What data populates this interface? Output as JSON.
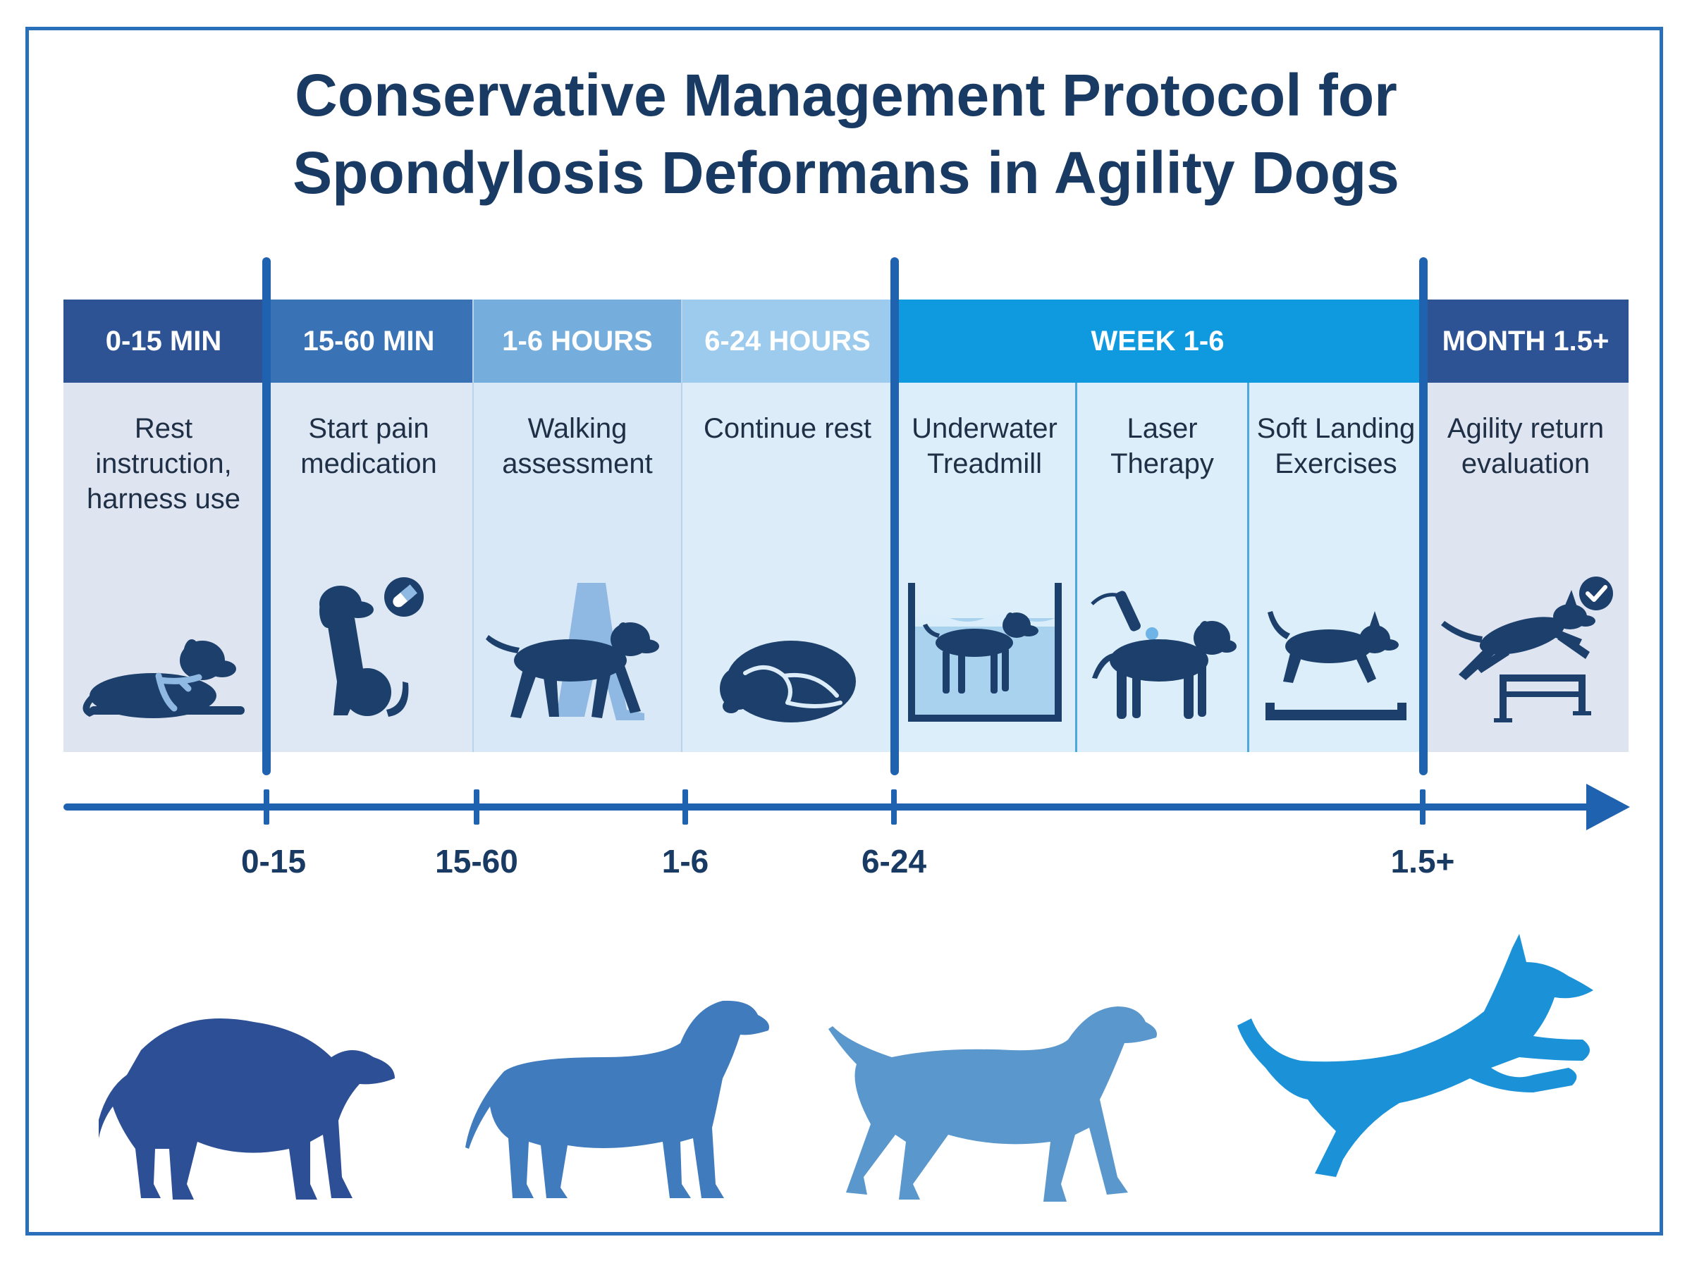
{
  "title": {
    "line1": "Conservative Management Protocol for",
    "line2": "Spondylosis Deformans in Agility Dogs"
  },
  "phases": [
    {
      "header": "0-15 MIN",
      "label": "Rest instruction, harness use",
      "icon": "dog-lying-harness-icon",
      "header_color": "#2d5394",
      "body_color": "#dfe4f1"
    },
    {
      "header": "15-60 MIN",
      "label": "Start pain medication",
      "icon": "dog-sitting-pill-icon",
      "header_color": "#3a73b5",
      "body_color": "#dde8f4"
    },
    {
      "header": "1-6 HOURS",
      "label": "Walking assessment",
      "icon": "dog-walking-with-person-icon",
      "header_color": "#75aedc",
      "body_color": "#d8e8f6"
    },
    {
      "header": "6-24 HOURS",
      "label": "Continue rest",
      "icon": "dog-curled-sleeping-icon",
      "header_color": "#9ccbed",
      "body_color": "#dcecf8"
    },
    {
      "header": "WEEK 1-6",
      "label": "",
      "icon": "",
      "header_color": "#0f9ae0",
      "body_color": "#dbeef9"
    },
    {
      "header": "MONTH 1.5+",
      "label": "Agility return evaluation",
      "icon": "dog-jumping-hurdle-check-icon",
      "header_color": "#2d5394",
      "body_color": "#dfe4f1"
    }
  ],
  "week_subphases": [
    {
      "label": "Underwater Treadmill",
      "icon": "dog-underwater-treadmill-icon"
    },
    {
      "label": "Laser Therapy",
      "icon": "dog-laser-therapy-icon"
    },
    {
      "label": "Soft Landing Exercises",
      "icon": "dog-soft-landing-icon"
    }
  ],
  "timeline": {
    "ticks": [
      "0-15",
      "15-60",
      "1-6",
      "6-24",
      "1.5+"
    ]
  },
  "progression": [
    {
      "icon": "dog-hunched-silhouette-icon",
      "color": "#2d4f95"
    },
    {
      "icon": "dog-standing-silhouette-icon",
      "color": "#3f7bbd"
    },
    {
      "icon": "dog-walking-silhouette-icon",
      "color": "#5a97cc"
    },
    {
      "icon": "dog-leaping-silhouette-icon",
      "color": "#1b92d8"
    }
  ],
  "colors": {
    "accent": "#1f62b0",
    "title": "#183a63",
    "icon": "#1c3f6b"
  }
}
